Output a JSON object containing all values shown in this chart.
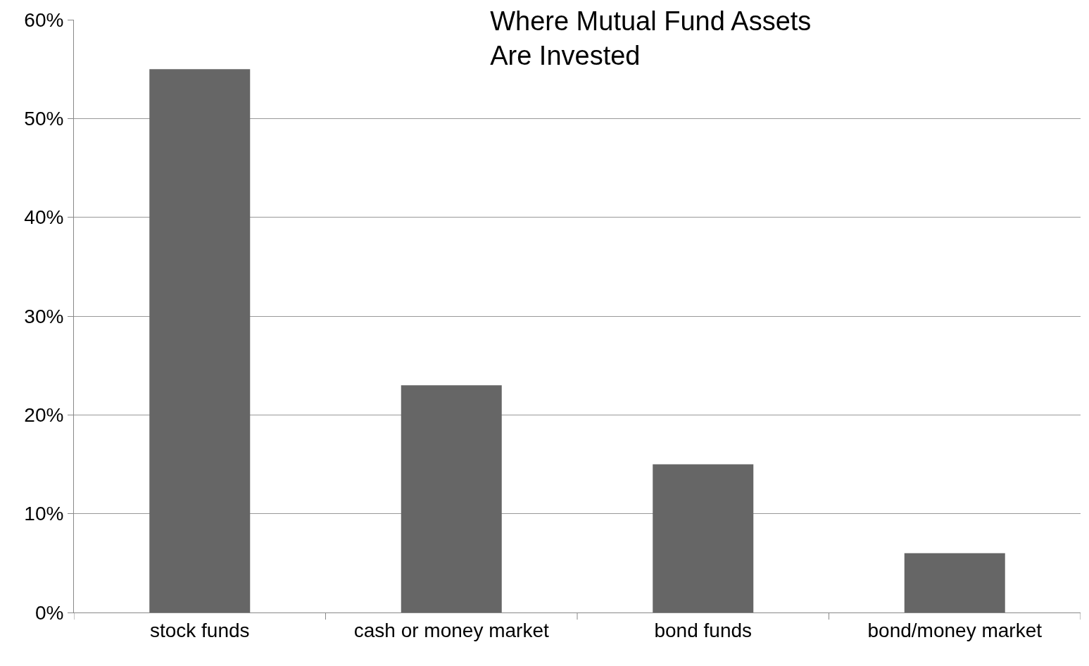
{
  "chart_data": {
    "type": "bar",
    "title": "Where Mutual Fund Assets\nAre Invested",
    "categories": [
      "stock funds",
      "cash or money market",
      "bond funds",
      "bond/money market"
    ],
    "values": [
      55,
      23,
      15,
      6
    ],
    "color": "#666666",
    "ylim": [
      0,
      60
    ],
    "yticks": [
      {
        "value": 0,
        "label": "0%"
      },
      {
        "value": 10,
        "label": "10%"
      },
      {
        "value": 20,
        "label": "20%"
      },
      {
        "value": 30,
        "label": "30%"
      },
      {
        "value": 40,
        "label": "40%"
      },
      {
        "value": 50,
        "label": "50%"
      },
      {
        "value": 60,
        "label": "60%"
      }
    ],
    "grid": "y"
  }
}
